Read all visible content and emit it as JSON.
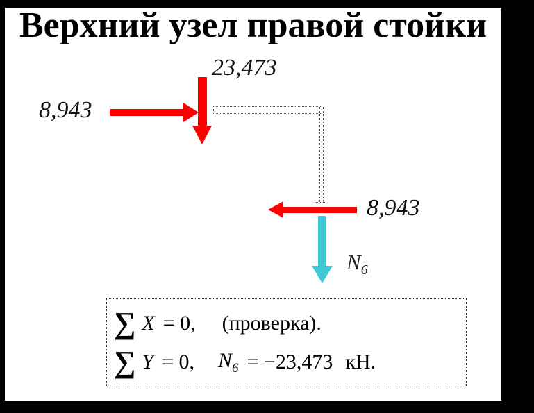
{
  "title": "Верхний узел правой стойки",
  "colors": {
    "arrow_red": "#ff0000",
    "axial_cyan": "#3ec9d5",
    "member_line": "#555555",
    "frame": "#000000"
  },
  "forces": {
    "top": "23,473",
    "left": "8,943",
    "right": "8,943"
  },
  "axial": {
    "symbol": "N",
    "subscript": "6"
  },
  "equations": {
    "line1": {
      "sigma": "∑",
      "variable": "X",
      "rhs": "= 0,",
      "note": "(проверка)."
    },
    "line2": {
      "sigma": "∑",
      "variable": "Y",
      "rhs": "= 0,",
      "symbol": "N",
      "subscript": "6",
      "result": "= −23,473",
      "unit": "кН."
    }
  }
}
